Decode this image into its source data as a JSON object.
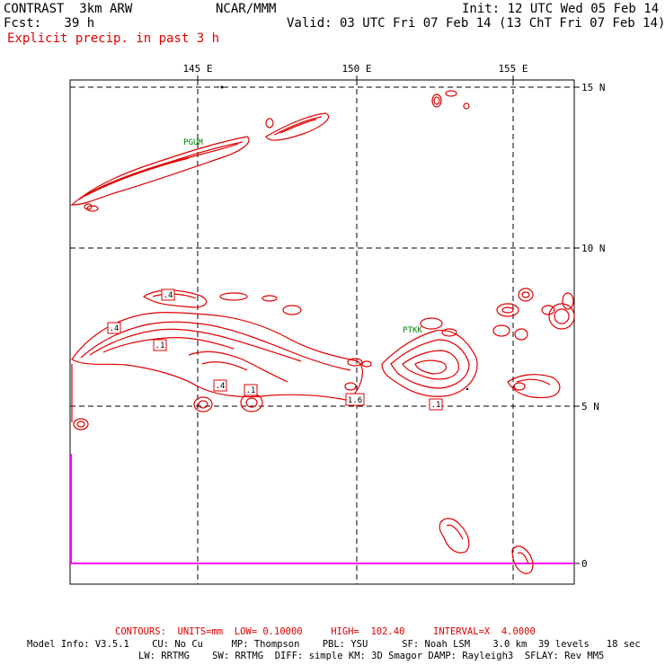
{
  "header": {
    "model_title": "CONTRAST  3km ARW",
    "center": "NCAR/MMM",
    "init": "Init: 12 UTC Wed 05 Feb 14",
    "fcst": "Fcst:   39 h",
    "valid": "Valid: 03 UTC Fri 07 Feb 14 (13 ChT Fri 07 Feb 14)",
    "field": "Explicit precip. in past 3 h"
  },
  "map": {
    "lon_labels": [
      "145 E",
      "150 E",
      "155 E"
    ],
    "lat_labels": [
      "15 N",
      "10 N",
      "5 N",
      "0"
    ],
    "stations": [
      "PGUM",
      "PTKK"
    ],
    "contour_labels": [
      ".4",
      ".4",
      ".1",
      ".4",
      ".1",
      "1.6",
      ".1"
    ],
    "colors": {
      "contour": "#e00000",
      "station": "#008000",
      "boundary": "#ff00ff",
      "grid": "#000000"
    }
  },
  "footer": {
    "contours": "CONTOURS:  UNITS=mm  LOW= 0.10000     HIGH=  102.40     INTERVAL=X  4.0000",
    "model_info_1": "Model Info: V3.5.1    CU: No Cu     MP: Thompson    PBL: YSU      SF: Noah LSM    3.0 km  39 levels   18 sec",
    "model_info_2": "LW: RRTMG    SW: RRTMG  DIFF: simple KM: 3D Smagor DAMP: Rayleigh3  SFLAY: Rev MM5"
  }
}
